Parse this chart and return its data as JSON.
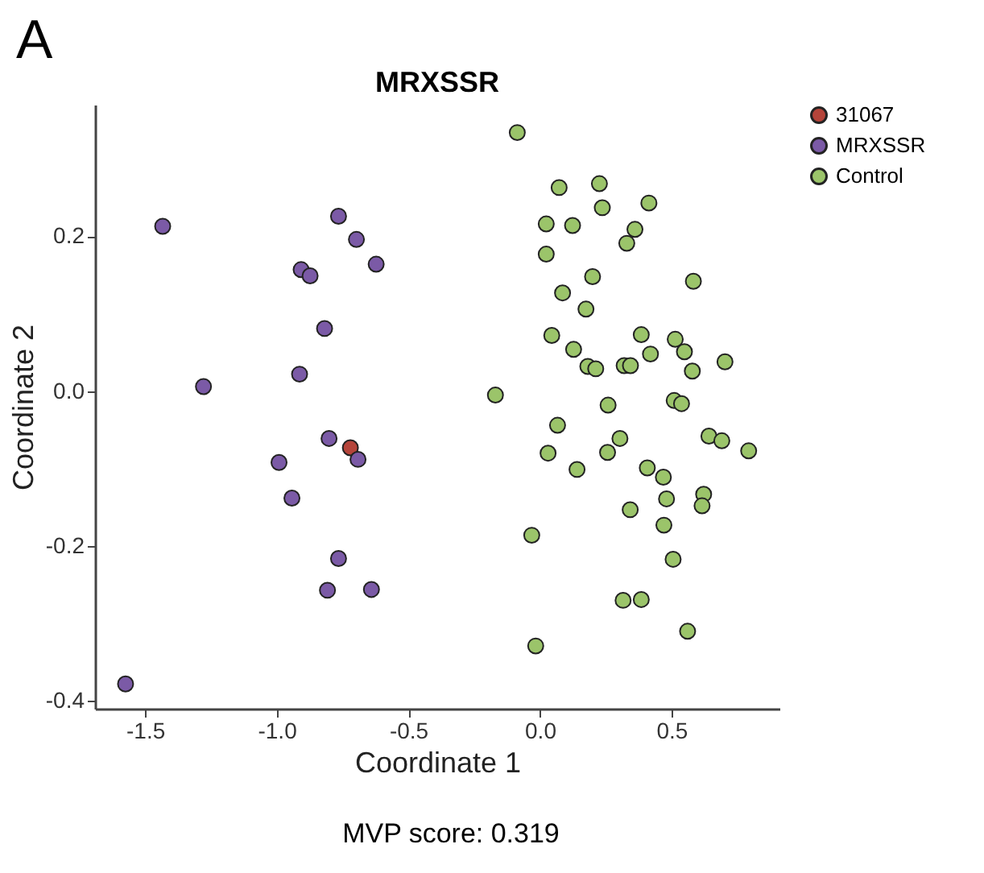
{
  "chart_data": {
    "type": "scatter",
    "title": "MRXSSR",
    "xlabel": "Coordinate 1",
    "ylabel": "Coordinate 2",
    "annotations": [
      "A",
      "MVP score: 0.319"
    ],
    "xlim": [
      -1.69,
      0.91
    ],
    "xticks": [
      {
        "value": -1.5,
        "label": "-1.5"
      },
      {
        "value": -1,
        "label": "-1.0"
      },
      {
        "value": -0.5,
        "label": "-0.5"
      },
      {
        "value": 0,
        "label": "0.0"
      },
      {
        "value": 0.5,
        "label": "0.5"
      }
    ],
    "ylim": [
      -0.41,
      0.37
    ],
    "yticks": [
      {
        "value": -0.4,
        "label": "-0.4"
      },
      {
        "value": -0.2,
        "label": "-0.2"
      },
      {
        "value": 0,
        "label": "0.0"
      },
      {
        "value": 0.2,
        "label": "0.2"
      }
    ],
    "grid": false,
    "legend": "right",
    "marker": "circle",
    "series": [
      {
        "name": "31067",
        "color": "#b5443a",
        "x": [
          -0.72
        ],
        "values": [
          -0.073
        ]
      },
      {
        "name": "MRXSSR",
        "color": "#7b5aa6",
        "x": [
          -1.433,
          -0.765,
          -0.697,
          -0.622,
          -0.907,
          -0.873,
          -0.818,
          -1.278,
          -0.913,
          -0.801,
          -0.691,
          -0.991,
          -0.942,
          -0.765,
          -0.807,
          -0.64,
          -1.574
        ],
        "values": [
          0.213,
          0.226,
          0.196,
          0.164,
          0.157,
          0.149,
          0.081,
          0.006,
          0.022,
          -0.061,
          -0.088,
          -0.092,
          -0.138,
          -0.216,
          -0.257,
          -0.256,
          -0.378
        ]
      },
      {
        "name": "Control",
        "color": "#9bc46a",
        "x": [
          -0.086,
          0.073,
          0.226,
          0.237,
          0.414,
          0.024,
          0.124,
          0.361,
          0.33,
          0.024,
          0.2,
          0.583,
          0.086,
          0.175,
          0.045,
          0.385,
          0.514,
          0.128,
          0.42,
          0.549,
          0.703,
          0.579,
          0.182,
          0.212,
          0.32,
          0.344,
          -0.169,
          0.259,
          0.51,
          0.538,
          0.067,
          0.031,
          0.141,
          0.257,
          0.304,
          0.642,
          0.691,
          0.793,
          0.408,
          0.469,
          0.622,
          0.616,
          0.481,
          0.343,
          0.471,
          -0.031,
          0.506,
          0.316,
          0.385,
          0.561,
          -0.016
        ],
        "values": [
          0.334,
          0.263,
          0.268,
          0.237,
          0.243,
          0.216,
          0.214,
          0.209,
          0.191,
          0.177,
          0.148,
          0.142,
          0.127,
          0.106,
          0.072,
          0.073,
          0.067,
          0.054,
          0.048,
          0.051,
          0.038,
          0.026,
          0.032,
          0.029,
          0.033,
          0.033,
          -0.005,
          -0.018,
          -0.012,
          -0.016,
          -0.044,
          -0.08,
          -0.101,
          -0.079,
          -0.061,
          -0.058,
          -0.064,
          -0.077,
          -0.099,
          -0.111,
          -0.133,
          -0.148,
          -0.139,
          -0.153,
          -0.173,
          -0.186,
          -0.217,
          -0.27,
          -0.269,
          -0.31,
          -0.329
        ]
      }
    ]
  }
}
